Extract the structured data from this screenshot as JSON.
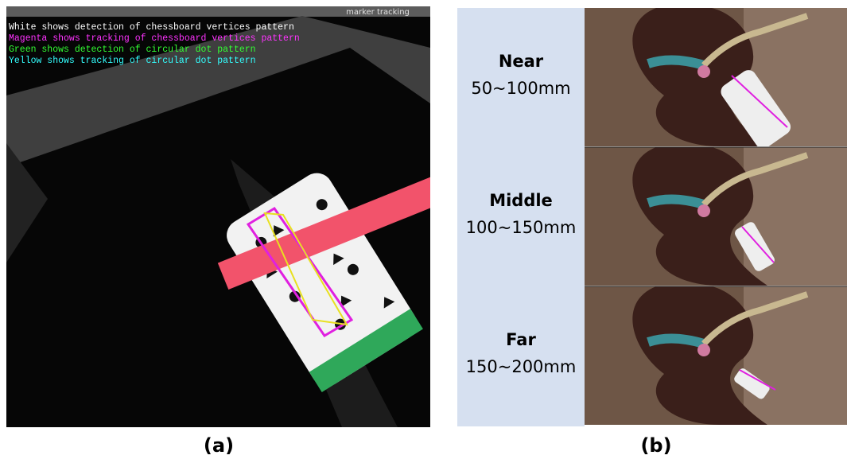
{
  "panel_a": {
    "window_title": "marker tracking",
    "legend": [
      "White shows detection of chessboard vertices pattern",
      "Magenta shows tracking of chessboard vertices pattern",
      "Green shows detection of circular dot pattern",
      "Yellow shows tracking of circular dot pattern"
    ],
    "caption": "(a)"
  },
  "panel_b": {
    "rows": [
      {
        "label": "Near",
        "range": "50~100mm"
      },
      {
        "label": "Middle",
        "range": "100~150mm"
      },
      {
        "label": "Far",
        "range": "150~200mm"
      }
    ],
    "caption": "(b)"
  }
}
